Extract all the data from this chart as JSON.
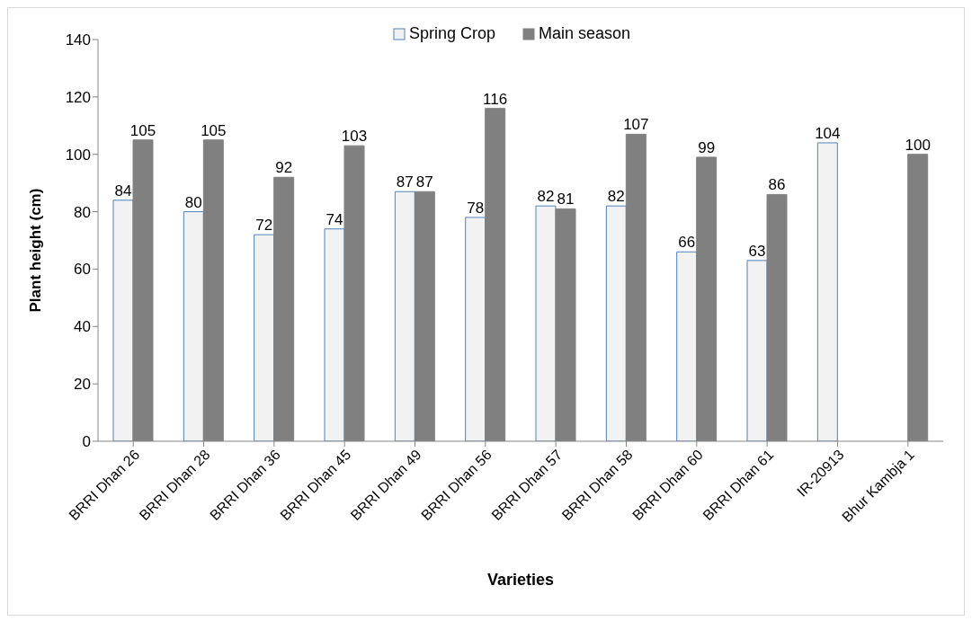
{
  "chart_data": {
    "type": "bar",
    "xlabel": "Varieties",
    "ylabel": "Plant height (cm)",
    "categories": [
      "BRRI Dhan 26",
      "BRRI Dhan 28",
      "BRRI Dhan 36",
      "BRRI Dhan 45",
      "BRRI Dhan 49",
      "BRRI Dhan 56",
      "BRRI Dhan 57",
      "BRRI Dhan 58",
      "BRRI Dhan 60",
      "BRRI Dhan 61",
      "IR-20913",
      "Bhur Kambja 1"
    ],
    "series": [
      {
        "name": "Spring Crop",
        "color": "#f2f2f2",
        "values": [
          84,
          80,
          72,
          74,
          87,
          78,
          82,
          82,
          66,
          63,
          104,
          null
        ]
      },
      {
        "name": "Main season",
        "color": "#808080",
        "values": [
          105,
          105,
          92,
          103,
          87,
          116,
          81,
          107,
          99,
          86,
          null,
          100
        ]
      }
    ],
    "ylim": [
      0,
      140
    ],
    "yticks": [
      0,
      20,
      40,
      60,
      80,
      100,
      120,
      140
    ],
    "grid": false,
    "legend": "top",
    "data_labels": true
  }
}
